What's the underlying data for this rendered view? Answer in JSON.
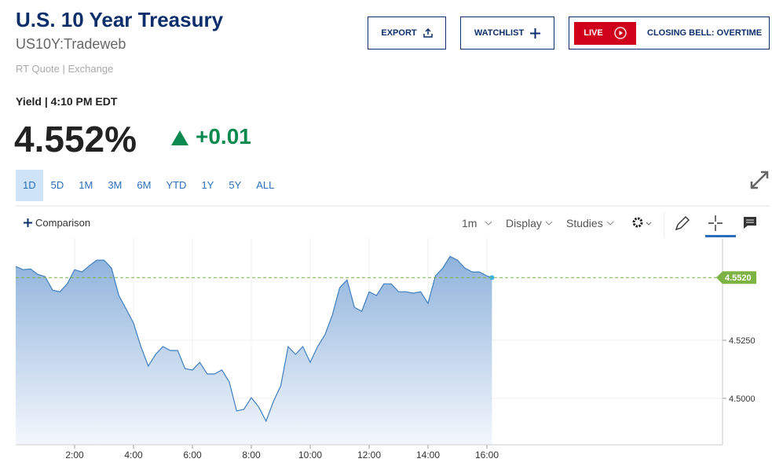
{
  "header": {
    "title": "U.S. 10 Year Treasury",
    "symbol": "US10Y:Tradeweb",
    "source": "RT Quote | Exchange"
  },
  "buttons": {
    "export": "EXPORT",
    "watchlist": "WATCHLIST",
    "live": "LIVE",
    "closing_bell": "CLOSING BELL: OVERTIME"
  },
  "quote": {
    "label": "Yield | 4:10 PM EDT",
    "price": "4.552%",
    "change": "+0.01"
  },
  "ranges": [
    "1D",
    "5D",
    "1M",
    "3M",
    "6M",
    "YTD",
    "1Y",
    "5Y",
    "ALL"
  ],
  "toolbar": {
    "comparison": "Comparison",
    "interval": "1m",
    "display": "Display",
    "studies": "Studies"
  },
  "chart_data": {
    "type": "area",
    "color": "#3f7fbf",
    "x": [
      0,
      0.25,
      0.5,
      0.75,
      1,
      1.25,
      1.5,
      1.75,
      2,
      2.25,
      2.5,
      2.75,
      3,
      3.25,
      3.5,
      3.75,
      4,
      4.25,
      4.5,
      4.75,
      5,
      5.25,
      5.5,
      5.75,
      6,
      6.25,
      6.5,
      6.75,
      7,
      7.25,
      7.5,
      7.75,
      8,
      8.25,
      8.5,
      8.75,
      9,
      9.25,
      9.5,
      9.75,
      10,
      10.25,
      10.5,
      10.75,
      11,
      11.25,
      11.5,
      11.75,
      12,
      12.25,
      12.5,
      12.75,
      13,
      13.25,
      13.5,
      13.75,
      14,
      14.25,
      14.5,
      14.75,
      15,
      15.25,
      15.5,
      15.75,
      16,
      16.17
    ],
    "values": [
      4.5568,
      4.5554,
      4.5557,
      4.5534,
      4.5524,
      4.5466,
      4.5459,
      4.5493,
      4.5554,
      4.5544,
      4.5571,
      4.5595,
      4.5595,
      4.5561,
      4.5443,
      4.5385,
      4.5324,
      4.5223,
      4.5139,
      4.5189,
      4.5223,
      4.5206,
      4.5206,
      4.5128,
      4.5122,
      4.5155,
      4.5105,
      4.5105,
      4.5122,
      4.5071,
      4.4946,
      4.4953,
      4.5003,
      4.4963,
      4.4902,
      4.4986,
      4.5054,
      4.5223,
      4.5189,
      4.5223,
      4.5155,
      4.5223,
      4.5274,
      4.5358,
      4.5476,
      4.551,
      4.5392,
      4.5375,
      4.5459,
      4.5443,
      4.5493,
      4.5493,
      4.5459,
      4.5459,
      4.5453,
      4.5459,
      4.5409,
      4.5527,
      4.5561,
      4.5611,
      4.5595,
      4.5561,
      4.5544,
      4.5544,
      4.5527,
      4.552
    ],
    "xlim": [
      0,
      24
    ],
    "xticks": [
      {
        "value": 2,
        "label": "2:00"
      },
      {
        "value": 4,
        "label": "4:00"
      },
      {
        "value": 6,
        "label": "6:00"
      },
      {
        "value": 8,
        "label": "8:00"
      },
      {
        "value": 10,
        "label": "10:00"
      },
      {
        "value": 12,
        "label": "12:00"
      },
      {
        "value": 14,
        "label": "14:00"
      },
      {
        "value": 16,
        "label": "16:00"
      }
    ],
    "ylim": [
      4.48,
      4.569
    ],
    "yticks": [
      {
        "value": 4.5,
        "label": "4.5000"
      },
      {
        "value": 4.525,
        "label": "4.5250"
      }
    ],
    "reference_line": {
      "value": 4.552,
      "label": "4.5520",
      "color": "#7cb342"
    },
    "grid": true
  }
}
